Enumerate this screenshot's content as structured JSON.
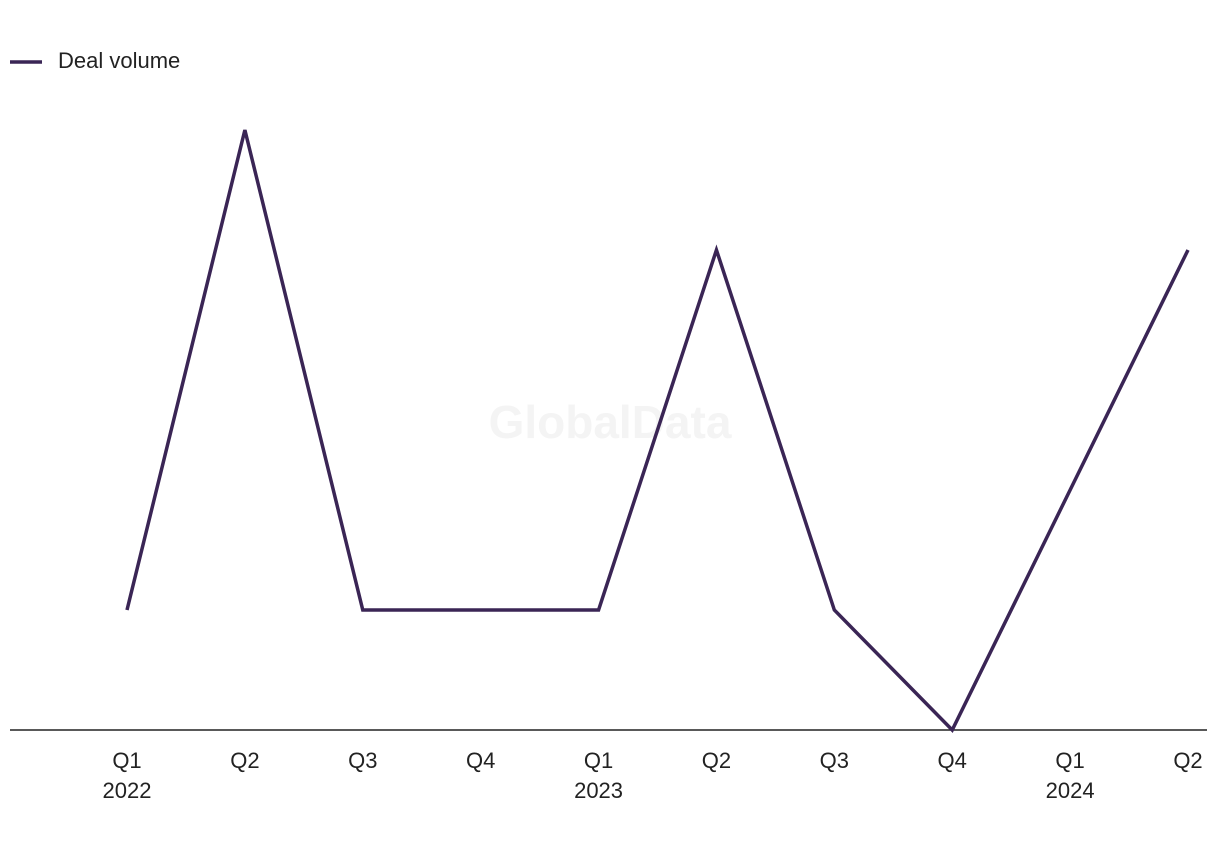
{
  "chart_data": {
    "type": "line",
    "watermark": "GlobalData",
    "categories": [
      "Q1 2022",
      "Q2",
      "Q3",
      "Q4",
      "Q1 2023",
      "Q2",
      "Q3",
      "Q4",
      "Q1 2024",
      "Q2"
    ],
    "series": [
      {
        "name": "Deal volume",
        "color": "#3a2555",
        "values": [
          1,
          5,
          1,
          1,
          1,
          4,
          1,
          0,
          2,
          4
        ]
      }
    ],
    "legend": "top-left"
  }
}
